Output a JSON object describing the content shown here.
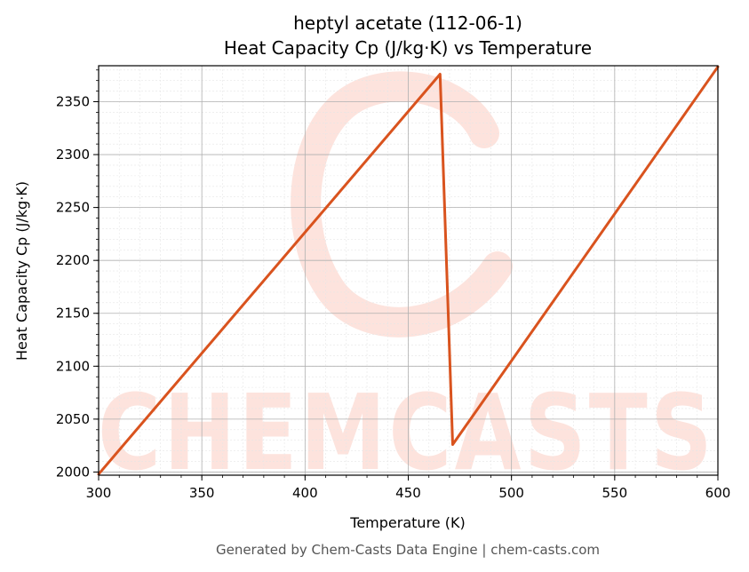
{
  "chart_data": {
    "type": "line",
    "title": "heptyl acetate (112-06-1)",
    "subtitle": "Heat Capacity Cp (J/kg·K) vs Temperature",
    "xlabel": "Temperature (K)",
    "ylabel": "Heat Capacity Cp (J/kg·K)",
    "xlim": [
      300,
      600
    ],
    "ylim": [
      1997,
      2384
    ],
    "xticks": [
      300,
      350,
      400,
      450,
      500,
      550,
      600
    ],
    "yticks": [
      2000,
      2050,
      2100,
      2150,
      2200,
      2250,
      2300,
      2350
    ],
    "grid": true,
    "series": [
      {
        "color": "#d9531e",
        "x": [
          300,
          465.4,
          471.5,
          600
        ],
        "y": [
          1998,
          2376,
          2026,
          2383
        ]
      }
    ]
  },
  "watermark": {
    "text": "CHEMCASTS",
    "color": "#fde3dd"
  },
  "footer": "Generated by Chem-Casts Data Engine | chem-casts.com"
}
